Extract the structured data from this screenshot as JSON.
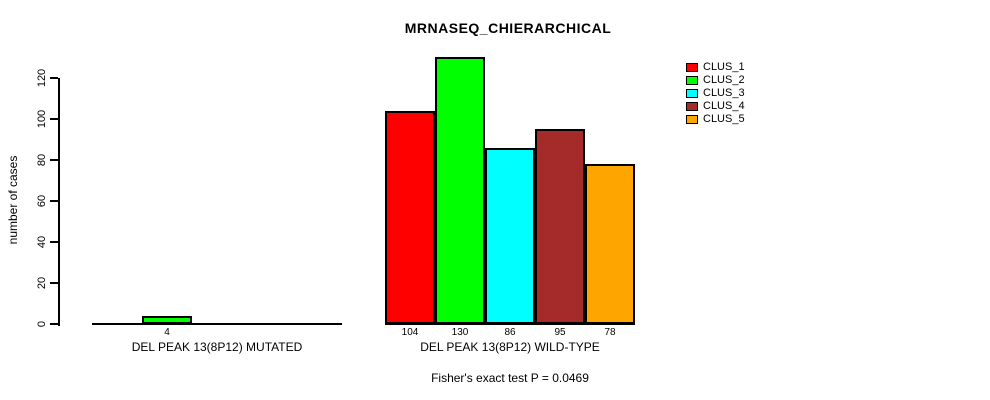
{
  "chart_data": {
    "type": "bar",
    "title": "MRNASEQ_CHIERARCHICAL",
    "ylabel": "number of cases",
    "footer": "Fisher's exact test P = 0.0469",
    "yticks": [
      0,
      20,
      40,
      60,
      80,
      100,
      120
    ],
    "ylim": [
      0,
      130
    ],
    "grid": false,
    "legend_position": "top-right",
    "categories": [
      "DEL PEAK 13(8P12) MUTATED",
      "DEL PEAK 13(8P12) WILD-TYPE"
    ],
    "series": [
      {
        "name": "CLUS_1",
        "color": "#FF0000",
        "values": [
          0,
          104
        ]
      },
      {
        "name": "CLUS_2",
        "color": "#00FF00",
        "values": [
          4,
          130
        ]
      },
      {
        "name": "CLUS_3",
        "color": "#00FFFF",
        "values": [
          0,
          86
        ]
      },
      {
        "name": "CLUS_4",
        "color": "#A52A2A",
        "values": [
          0,
          95
        ]
      },
      {
        "name": "CLUS_5",
        "color": "#FFA500",
        "values": [
          0,
          78
        ]
      }
    ],
    "bar_value_labels_shown": [
      "4",
      "104",
      "130",
      "86",
      "95",
      "78"
    ]
  }
}
